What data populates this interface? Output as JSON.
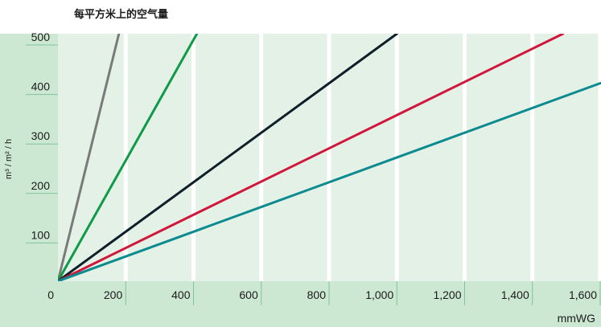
{
  "chart_data": {
    "type": "line",
    "title": "每平方米上的空气量",
    "xlabel": "mmWG",
    "ylabel": "m³ / m² / h",
    "xlim": [
      0,
      1600
    ],
    "ylim": [
      0,
      500
    ],
    "x_ticks": [
      "0",
      "200",
      "400",
      "600",
      "800",
      "1,000",
      "1,200",
      "1,400",
      "1,600"
    ],
    "y_ticks": [
      "100",
      "200",
      "300",
      "400",
      "500"
    ],
    "grid": true,
    "legend": "none",
    "series": [
      {
        "color": "#7a7a7a",
        "x": [
          0,
          180
        ],
        "y": [
          0,
          500
        ]
      },
      {
        "color": "#109a48",
        "x": [
          0,
          410
        ],
        "y": [
          0,
          500
        ]
      },
      {
        "color": "#0f1f2a",
        "x": [
          0,
          1000
        ],
        "y": [
          0,
          500
        ]
      },
      {
        "color": "#d0163a",
        "x": [
          0,
          1490
        ],
        "y": [
          0,
          500
        ]
      },
      {
        "color": "#0b8a8f",
        "x": [
          0,
          1600
        ],
        "y": [
          0,
          400
        ]
      }
    ]
  },
  "colors": {
    "plot_background": "#e4f1e6",
    "axis_band": "#cde8d2",
    "gridline": "#ffffff",
    "tick_mark": "#7fc49a"
  }
}
